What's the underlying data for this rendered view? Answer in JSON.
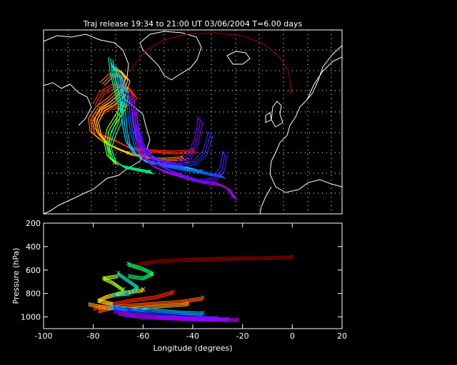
{
  "title": "Traj release 19:34 to 21:00 UT 03/06/2004    T=6.00 days",
  "map_panel": {
    "type": "trajectory-map",
    "gridlines": true,
    "gridline_style": "dotted",
    "land_outline_color": "#ffffff",
    "background_color": "#000000"
  },
  "chart_data": {
    "type": "scatter",
    "xlabel": "Longitude  (degrees)",
    "ylabel": "Pressure  (hPa)",
    "xlim": [
      -100,
      20
    ],
    "ylim": [
      1100,
      200
    ],
    "y_inverted": true,
    "grid": false,
    "x_ticks": [
      "-100",
      "-80",
      "-60",
      "-40",
      "-20",
      "0",
      "20"
    ],
    "y_ticks": [
      "200",
      "400",
      "600",
      "800",
      "1000"
    ],
    "release_marker": "x",
    "series": [
      {
        "color": "#8b0000",
        "points": [
          [
            0,
            480
          ],
          [
            -10,
            485
          ],
          [
            -25,
            490
          ],
          [
            -40,
            500
          ],
          [
            -52,
            510
          ],
          [
            -60,
            530
          ],
          [
            -64,
            560
          ]
        ]
      },
      {
        "color": "#ff2200",
        "points": [
          [
            -48,
            780
          ],
          [
            -55,
            820
          ],
          [
            -65,
            850
          ],
          [
            -75,
            890
          ],
          [
            -80,
            920
          ]
        ]
      },
      {
        "color": "#ff5500",
        "points": [
          [
            -36,
            830
          ],
          [
            -45,
            860
          ],
          [
            -58,
            880
          ],
          [
            -70,
            900
          ],
          [
            -78,
            940
          ]
        ]
      },
      {
        "color": "#ff9900",
        "points": [
          [
            -42,
            880
          ],
          [
            -55,
            900
          ],
          [
            -65,
            920
          ],
          [
            -75,
            910
          ],
          [
            -82,
            880
          ]
        ]
      },
      {
        "color": "#ffdd00",
        "points": [
          [
            -60,
            760
          ],
          [
            -70,
            790
          ],
          [
            -75,
            820
          ],
          [
            -78,
            850
          ],
          [
            -72,
            880
          ]
        ]
      },
      {
        "color": "#aaff00",
        "points": [
          [
            -68,
            760
          ],
          [
            -72,
            700
          ],
          [
            -76,
            660
          ],
          [
            -70,
            640
          ]
        ]
      },
      {
        "color": "#00ff66",
        "points": [
          [
            -66,
            540
          ],
          [
            -60,
            580
          ],
          [
            -56,
            620
          ],
          [
            -60,
            660
          ],
          [
            -66,
            640
          ]
        ]
      },
      {
        "color": "#00e0c0",
        "points": [
          [
            -70,
            620
          ],
          [
            -66,
            680
          ],
          [
            -62,
            740
          ],
          [
            -66,
            790
          ],
          [
            -72,
            800
          ]
        ]
      },
      {
        "color": "#00aaff",
        "points": [
          [
            -36,
            960
          ],
          [
            -46,
            950
          ],
          [
            -56,
            930
          ],
          [
            -66,
            920
          ],
          [
            -74,
            900
          ]
        ]
      },
      {
        "color": "#0044ff",
        "points": [
          [
            -30,
            1000
          ],
          [
            -40,
            990
          ],
          [
            -55,
            960
          ],
          [
            -66,
            930
          ],
          [
            -72,
            910
          ]
        ]
      },
      {
        "color": "#7700ff",
        "points": [
          [
            -26,
            1010
          ],
          [
            -38,
            1000
          ],
          [
            -52,
            990
          ],
          [
            -64,
            970
          ],
          [
            -72,
            940
          ]
        ]
      },
      {
        "color": "#aa00ff",
        "points": [
          [
            -22,
            1015
          ],
          [
            -35,
            1010
          ],
          [
            -50,
            1000
          ],
          [
            -62,
            985
          ],
          [
            -70,
            960
          ]
        ]
      }
    ]
  }
}
